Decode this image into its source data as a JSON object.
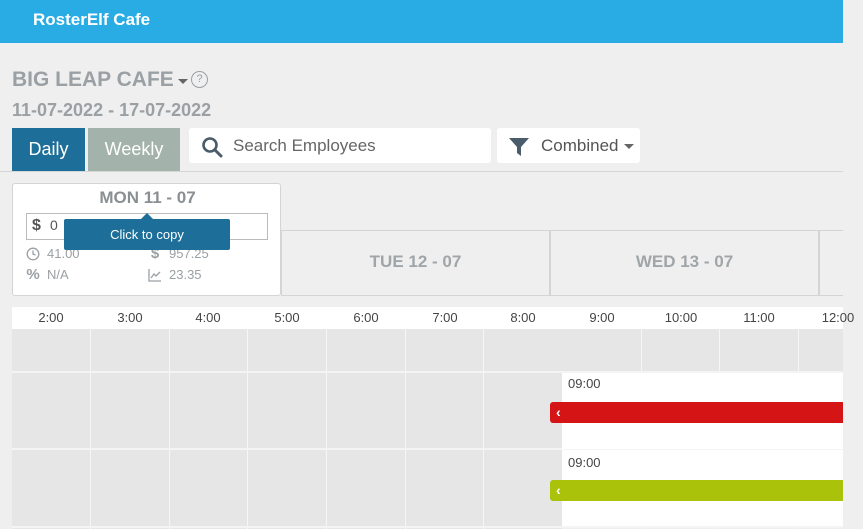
{
  "app": {
    "title": "RosterElf Cafe"
  },
  "header": {
    "cafe_name": "BIG LEAP CAFE",
    "help": "?",
    "date_range": "11-07-2022 - 17-07-2022"
  },
  "tabs": {
    "daily": "Daily",
    "weekly": "Weekly",
    "active": "daily"
  },
  "search": {
    "placeholder": "Search Employees",
    "value": ""
  },
  "filter": {
    "label": "Combined"
  },
  "days": [
    {
      "label": "MON 11 - 07"
    },
    {
      "label": "TUE 12 - 07"
    },
    {
      "label": "WED 13 - 07"
    }
  ],
  "mon": {
    "budget_symbol": "$",
    "budget_value": "0",
    "tooltip": "Click to copy",
    "hours": "41.00",
    "cost": "957.25",
    "percent": "N/A",
    "avg": "23.35",
    "icons": {
      "hours": "clock-icon",
      "cost": "dollar-icon",
      "percent": "percent-icon",
      "avg": "chart-icon"
    }
  },
  "timeline": [
    "2:00",
    "3:00",
    "4:00",
    "5:00",
    "6:00",
    "7:00",
    "8:00",
    "9:00",
    "10:00",
    "11:00",
    "12:00"
  ],
  "shifts": [
    {
      "start_label": "09:00",
      "color": "#d51515"
    },
    {
      "start_label": "09:00",
      "color": "#aac20a"
    }
  ],
  "colors": {
    "topbar": "#29ace3",
    "active_tab": "#1d6e98",
    "inactive_tab": "#a3b2ab"
  }
}
